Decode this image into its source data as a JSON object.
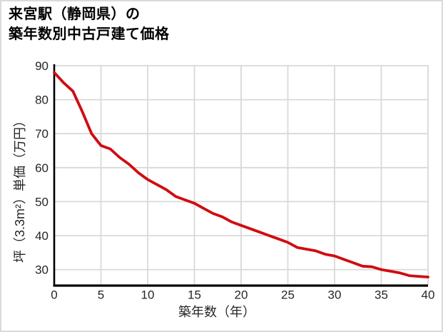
{
  "title": {
    "line1": "来宮駅（静岡県）の",
    "line2": "築年数別中古戸建て価格"
  },
  "colors": {
    "line": "#d00c12",
    "grid": "#d9d9d9",
    "axis": "#000000",
    "tick_text": "#262626",
    "title_text": "#000000",
    "border": "#dadada",
    "background": "#ffffff"
  },
  "chart_data": {
    "type": "line",
    "title": "来宮駅（静岡県）の築年数別中古戸建て価格",
    "xlabel": "築年数（年）",
    "ylabel": "坪（3.3m²）単価（万円）",
    "x": [
      0,
      1,
      2,
      3,
      4,
      5,
      6,
      7,
      8,
      9,
      10,
      11,
      12,
      13,
      14,
      15,
      16,
      17,
      18,
      19,
      20,
      21,
      22,
      23,
      24,
      25,
      26,
      27,
      28,
      29,
      30,
      31,
      32,
      33,
      34,
      35,
      36,
      37,
      38,
      39,
      40
    ],
    "values": [
      88,
      85,
      82.5,
      76.5,
      70,
      66.5,
      65.5,
      63,
      61,
      58.5,
      56.5,
      55,
      53.5,
      51.5,
      50.5,
      49.5,
      48,
      46.5,
      45.5,
      44,
      43,
      42,
      41,
      40,
      39,
      38,
      36.5,
      36,
      35.5,
      34.5,
      34,
      33,
      32,
      31,
      30.8,
      30,
      29.5,
      29,
      28.2,
      28,
      27.8
    ],
    "xlim": [
      0,
      40
    ],
    "ylim": [
      26,
      90
    ],
    "xticks": [
      0,
      5,
      10,
      15,
      20,
      25,
      30,
      35,
      40
    ],
    "yticks": [
      30,
      40,
      50,
      60,
      70,
      80,
      90
    ],
    "grid": true,
    "legend": "none",
    "line_color": "#d00c12",
    "line_width": 3.8
  }
}
